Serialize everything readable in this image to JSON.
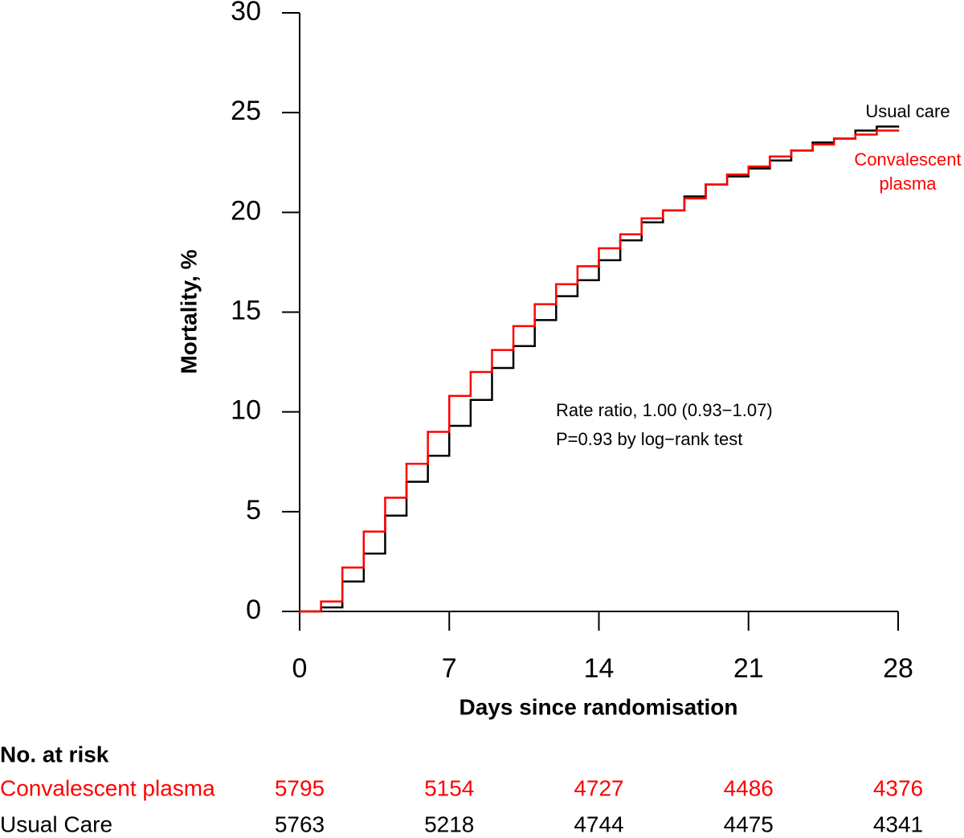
{
  "chart_data": {
    "type": "step",
    "y_label": "Mortality, %",
    "x_label": "Days since randomisation",
    "x": [
      0,
      1,
      2,
      3,
      4,
      5,
      6,
      7,
      8,
      9,
      10,
      11,
      12,
      13,
      14,
      15,
      16,
      17,
      18,
      19,
      20,
      21,
      22,
      23,
      24,
      25,
      26,
      27,
      28
    ],
    "series": [
      {
        "name": "Usual care",
        "color": "#000000",
        "values": [
          0,
          0.2,
          1.5,
          2.9,
          4.8,
          6.5,
          7.8,
          9.3,
          10.6,
          12.2,
          13.3,
          14.6,
          15.8,
          16.6,
          17.6,
          18.6,
          19.5,
          20.1,
          20.8,
          21.4,
          21.8,
          22.2,
          22.6,
          23.1,
          23.5,
          23.7,
          24.1,
          24.3,
          24.3
        ]
      },
      {
        "name": "Convalescent plasma",
        "color": "#ff0000",
        "values": [
          0,
          0.5,
          2.2,
          4.0,
          5.7,
          7.4,
          9.0,
          10.8,
          12.0,
          13.1,
          14.3,
          15.4,
          16.4,
          17.3,
          18.2,
          18.9,
          19.7,
          20.1,
          20.7,
          21.4,
          21.9,
          22.3,
          22.8,
          23.1,
          23.4,
          23.7,
          23.9,
          24.1,
          24.1
        ]
      }
    ],
    "xlim": [
      0,
      28
    ],
    "xticks": [
      0,
      7,
      14,
      21,
      28
    ],
    "ylim": [
      0,
      30
    ],
    "yticks": [
      0,
      5,
      10,
      15,
      20,
      25,
      30
    ],
    "grid": false,
    "annotations": [
      "Rate ratio, 1.00 (0.93−1.07)",
      "P=0.93 by log−rank test"
    ]
  },
  "risk_table": {
    "title": "No. at risk",
    "days": [
      0,
      7,
      14,
      21,
      28
    ],
    "rows": [
      {
        "label": "Convalescent plasma",
        "color": "#ff0000",
        "values": [
          5795,
          5154,
          4727,
          4486,
          4376
        ]
      },
      {
        "label": "Usual Care",
        "color": "#000000",
        "values": [
          5763,
          5218,
          4744,
          4475,
          4341
        ]
      }
    ]
  }
}
